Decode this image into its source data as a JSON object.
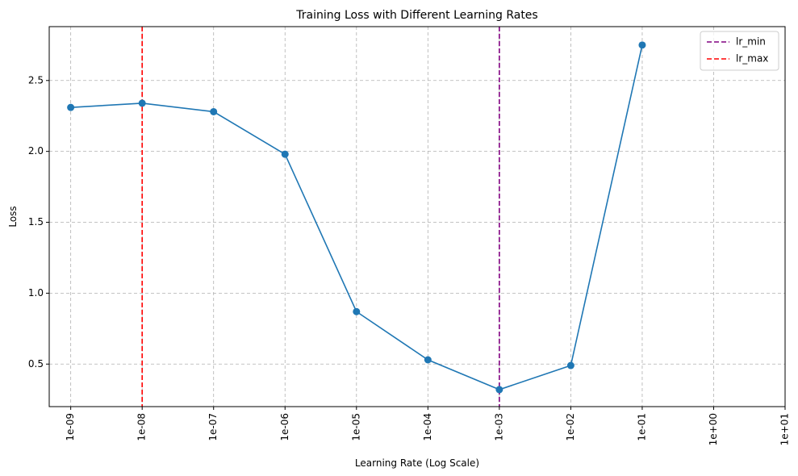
{
  "chart_data": {
    "type": "line",
    "title": "Training Loss with Different Learning Rates",
    "xlabel": "Learning Rate (Log Scale)",
    "ylabel": "Loss",
    "xscale": "log",
    "xlim": [
      5e-10,
      10.0
    ],
    "ylim": [
      0.2,
      2.88
    ],
    "grid": true,
    "x_tick_labels": [
      "1e-09",
      "1e-08",
      "1e-07",
      "1e-06",
      "1e-05",
      "1e-04",
      "1e-03",
      "1e-02",
      "1e-01",
      "1e+00",
      "1e+01"
    ],
    "x_ticks": [
      1e-09,
      1e-08,
      1e-07,
      1e-06,
      1e-05,
      0.0001,
      0.001,
      0.01,
      0.1,
      1.0,
      10.0
    ],
    "y_ticks": [
      0.5,
      1.0,
      1.5,
      2.0,
      2.5
    ],
    "y_tick_labels": [
      "0.5",
      "1.0",
      "1.5",
      "2.0",
      "2.5"
    ],
    "series": [
      {
        "color": "#1f77b4",
        "marker": "circle",
        "x": [
          1e-09,
          1e-08,
          1e-07,
          1e-06,
          1e-05,
          0.0001,
          0.001,
          0.01,
          0.1
        ],
        "y": [
          2.31,
          2.34,
          2.28,
          1.98,
          0.87,
          0.53,
          0.32,
          0.49,
          2.75
        ]
      }
    ],
    "vlines": [
      {
        "name": "lr_min",
        "x": 0.001,
        "color": "#800080",
        "style": "dashed"
      },
      {
        "name": "lr_max",
        "x": 1e-08,
        "color": "#ff0000",
        "style": "dashed"
      }
    ],
    "legend": {
      "position": "top-right",
      "entries": [
        {
          "label": "lr_min",
          "color": "#800080"
        },
        {
          "label": "lr_max",
          "color": "#ff0000"
        }
      ]
    }
  }
}
